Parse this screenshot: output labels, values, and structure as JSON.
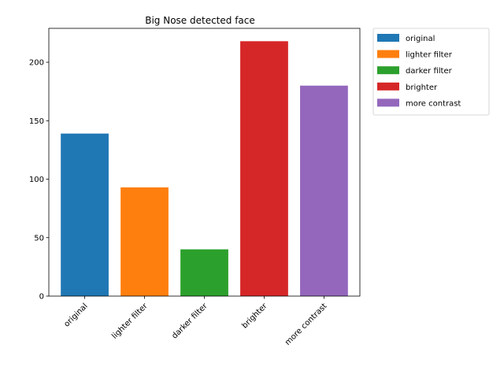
{
  "chart_data": {
    "type": "bar",
    "title": "Big Nose detected face",
    "xlabel": "",
    "ylabel": "",
    "categories": [
      "original",
      "lighter filter",
      "darker filter",
      "brighter",
      "more contrast"
    ],
    "values": [
      139,
      93,
      40,
      218,
      180
    ],
    "colors": [
      "#1f77b4",
      "#ff7f0e",
      "#2ca02c",
      "#d62728",
      "#9467bd"
    ],
    "ylim": [
      0,
      229
    ],
    "yticks": [
      0,
      50,
      100,
      150,
      200
    ],
    "grid": false,
    "legend": {
      "placement": "outside-top-right",
      "entries": [
        "original",
        "lighter filter",
        "darker filter",
        "brighter",
        "more contrast"
      ]
    }
  }
}
